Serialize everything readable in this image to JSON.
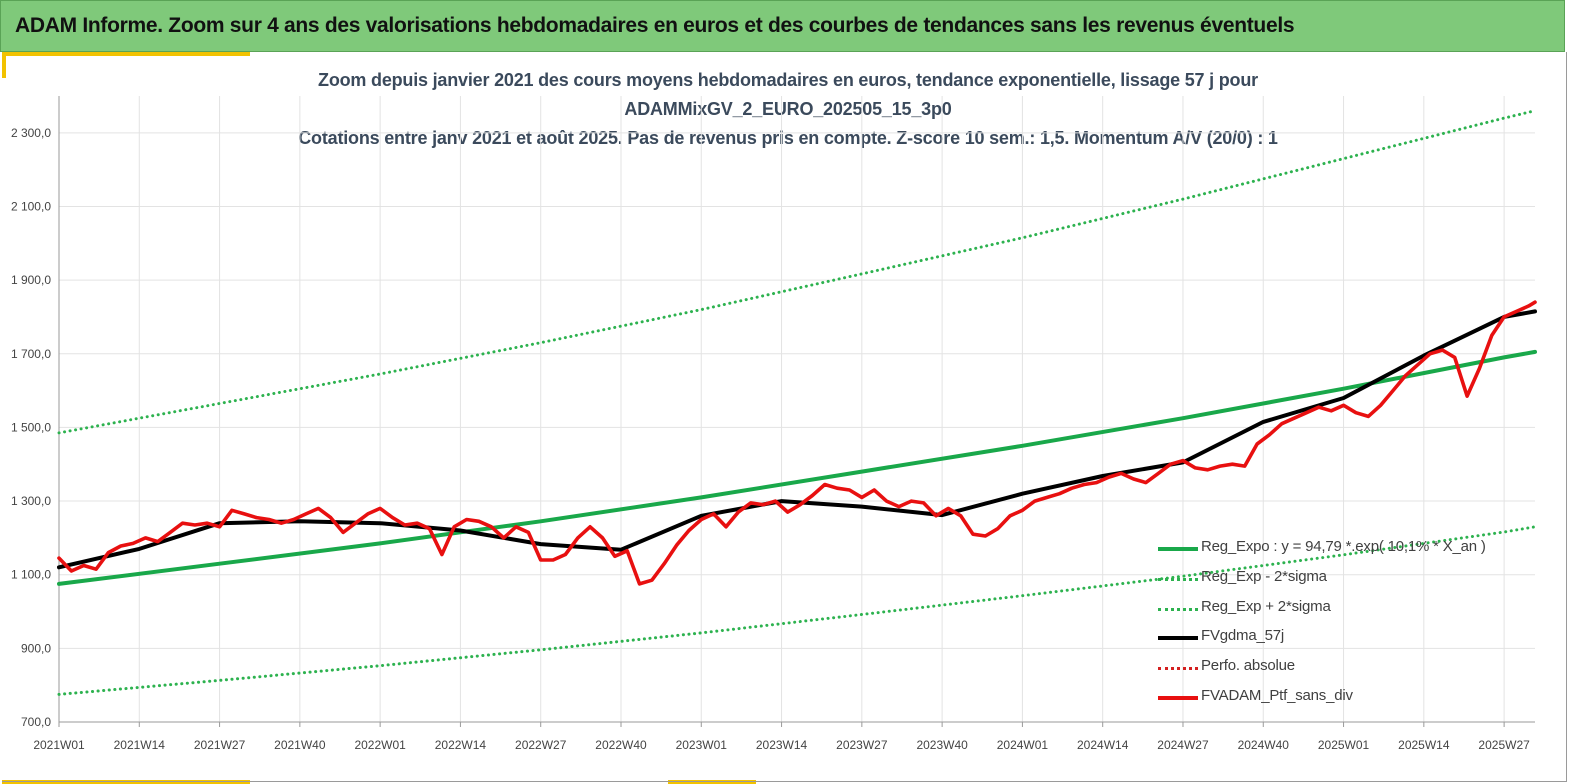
{
  "banner": {
    "title": "ADAM Informe. Zoom sur 4 ans des valorisations hebdomadaires en euros et des courbes de tendances sans les revenus éventuels"
  },
  "colors": {
    "banner_bg": "#7fc97a",
    "accent": "#f2c200",
    "trend_green": "#19a84a",
    "band_green": "#2db24f",
    "smoothed_black": "#000000",
    "portfolio_red": "#e81010",
    "perfo_dotted_red": "#d42020"
  },
  "chart_data": {
    "type": "line",
    "title_lines": [
      "Zoom depuis janvier 2021 des cours moyens hebdomadaires  en euros, tendance exponentielle, lissage 57 j pour",
      "ADAMMixGV_2_EURO_202505_15_3p0",
      "Cotations  entre janv 2021 et août 2025. Pas de revenus pris en compte. Z-score 10 sem.: 1,5. Momentum A/V (20/0) : 1"
    ],
    "x_tick_labels": [
      "2021W01",
      "2021W14",
      "2021W27",
      "2021W40",
      "2022W01",
      "2022W14",
      "2022W27",
      "2022W40",
      "2023W01",
      "2023W14",
      "2023W27",
      "2023W40",
      "2024W01",
      "2024W14",
      "2024W27",
      "2024W40",
      "2025W01",
      "2025W14",
      "2025W27"
    ],
    "x_weeks_per_tick": 13,
    "x_range_weeks": [
      0,
      239
    ],
    "ylim": [
      700,
      2400
    ],
    "y_ticks": [
      700,
      900,
      1100,
      1300,
      1500,
      1700,
      1900,
      2100,
      2300
    ],
    "y_tick_labels": [
      "700,0",
      "900,0",
      "1 100,0",
      "1 300,0",
      "1 500,0",
      "1 700,0",
      "1 900,0",
      "2 100,0",
      "2 300,0"
    ],
    "grid": "vertical and horizontal light grey",
    "legend_position": "bottom-right",
    "series": [
      {
        "name": "Reg_Expo : y = 94,79 *.exp( 10,1% *  X_an )",
        "style": "solid",
        "color": "#19a84a",
        "x": [
          0,
          26,
          52,
          78,
          104,
          130,
          156,
          182,
          208,
          234,
          239
        ],
        "y": [
          1075,
          1130,
          1185,
          1245,
          1310,
          1380,
          1450,
          1525,
          1605,
          1690,
          1705
        ]
      },
      {
        "name": "Reg_Exp - 2*sigma",
        "style": "dotted",
        "color": "#2db24f",
        "x": [
          0,
          26,
          52,
          78,
          104,
          130,
          156,
          182,
          208,
          234,
          239
        ],
        "y": [
          775,
          813,
          853,
          896,
          942,
          992,
          1043,
          1096,
          1154,
          1216,
          1230
        ]
      },
      {
        "name": "Reg_Exp + 2*sigma",
        "style": "dotted",
        "color": "#2db24f",
        "x": [
          0,
          26,
          52,
          78,
          104,
          130,
          156,
          182,
          208,
          234,
          239
        ],
        "y": [
          1485,
          1565,
          1645,
          1730,
          1820,
          1917,
          2015,
          2120,
          2230,
          2340,
          2360
        ]
      },
      {
        "name": "FVgdma_57j",
        "style": "solid",
        "color": "#000000",
        "x": [
          0,
          13,
          26,
          39,
          52,
          65,
          78,
          91,
          104,
          117,
          130,
          143,
          156,
          169,
          182,
          195,
          208,
          221,
          234,
          239
        ],
        "y": [
          1120,
          1170,
          1240,
          1245,
          1240,
          1220,
          1183,
          1168,
          1260,
          1300,
          1285,
          1262,
          1320,
          1368,
          1405,
          1515,
          1580,
          1695,
          1800,
          1815
        ]
      },
      {
        "name": "Perfo. absolue",
        "style": "dotted",
        "color": "#d42020",
        "x": [],
        "y": []
      },
      {
        "name": "FVADAM_Ptf_sans_div",
        "style": "solid",
        "color": "#e81010",
        "x": [
          0,
          2,
          4,
          6,
          8,
          10,
          12,
          14,
          16,
          18,
          20,
          22,
          24,
          26,
          28,
          30,
          32,
          34,
          36,
          38,
          40,
          42,
          44,
          46,
          48,
          50,
          52,
          54,
          56,
          58,
          60,
          62,
          64,
          66,
          68,
          70,
          72,
          74,
          76,
          78,
          80,
          82,
          84,
          86,
          88,
          90,
          92,
          94,
          96,
          98,
          100,
          102,
          104,
          106,
          108,
          110,
          112,
          114,
          116,
          118,
          120,
          122,
          124,
          126,
          128,
          130,
          132,
          134,
          136,
          138,
          140,
          142,
          144,
          146,
          148,
          150,
          152,
          154,
          156,
          158,
          160,
          162,
          164,
          166,
          168,
          170,
          172,
          174,
          176,
          178,
          180,
          182,
          184,
          186,
          188,
          190,
          192,
          194,
          196,
          198,
          200,
          202,
          204,
          206,
          208,
          210,
          212,
          214,
          216,
          218,
          220,
          222,
          224,
          226,
          228,
          230,
          232,
          234,
          236,
          238,
          239
        ],
        "y": [
          1145,
          1110,
          1125,
          1115,
          1160,
          1178,
          1185,
          1200,
          1190,
          1215,
          1240,
          1235,
          1240,
          1230,
          1275,
          1265,
          1255,
          1250,
          1240,
          1250,
          1265,
          1280,
          1255,
          1215,
          1240,
          1265,
          1280,
          1255,
          1235,
          1240,
          1225,
          1155,
          1230,
          1250,
          1245,
          1230,
          1200,
          1230,
          1215,
          1140,
          1140,
          1155,
          1200,
          1230,
          1200,
          1150,
          1165,
          1075,
          1085,
          1130,
          1180,
          1220,
          1250,
          1265,
          1230,
          1270,
          1295,
          1290,
          1300,
          1270,
          1290,
          1315,
          1345,
          1335,
          1330,
          1310,
          1330,
          1300,
          1285,
          1300,
          1295,
          1260,
          1280,
          1260,
          1210,
          1205,
          1225,
          1260,
          1275,
          1300,
          1310,
          1320,
          1335,
          1345,
          1350,
          1365,
          1375,
          1360,
          1350,
          1375,
          1400,
          1410,
          1390,
          1385,
          1395,
          1400,
          1395,
          1455,
          1480,
          1510,
          1525,
          1540,
          1555,
          1545,
          1560,
          1540,
          1530,
          1560,
          1600,
          1640,
          1670,
          1700,
          1710,
          1690,
          1585,
          1660,
          1750,
          1800,
          1815,
          1830,
          1840
        ]
      }
    ]
  }
}
